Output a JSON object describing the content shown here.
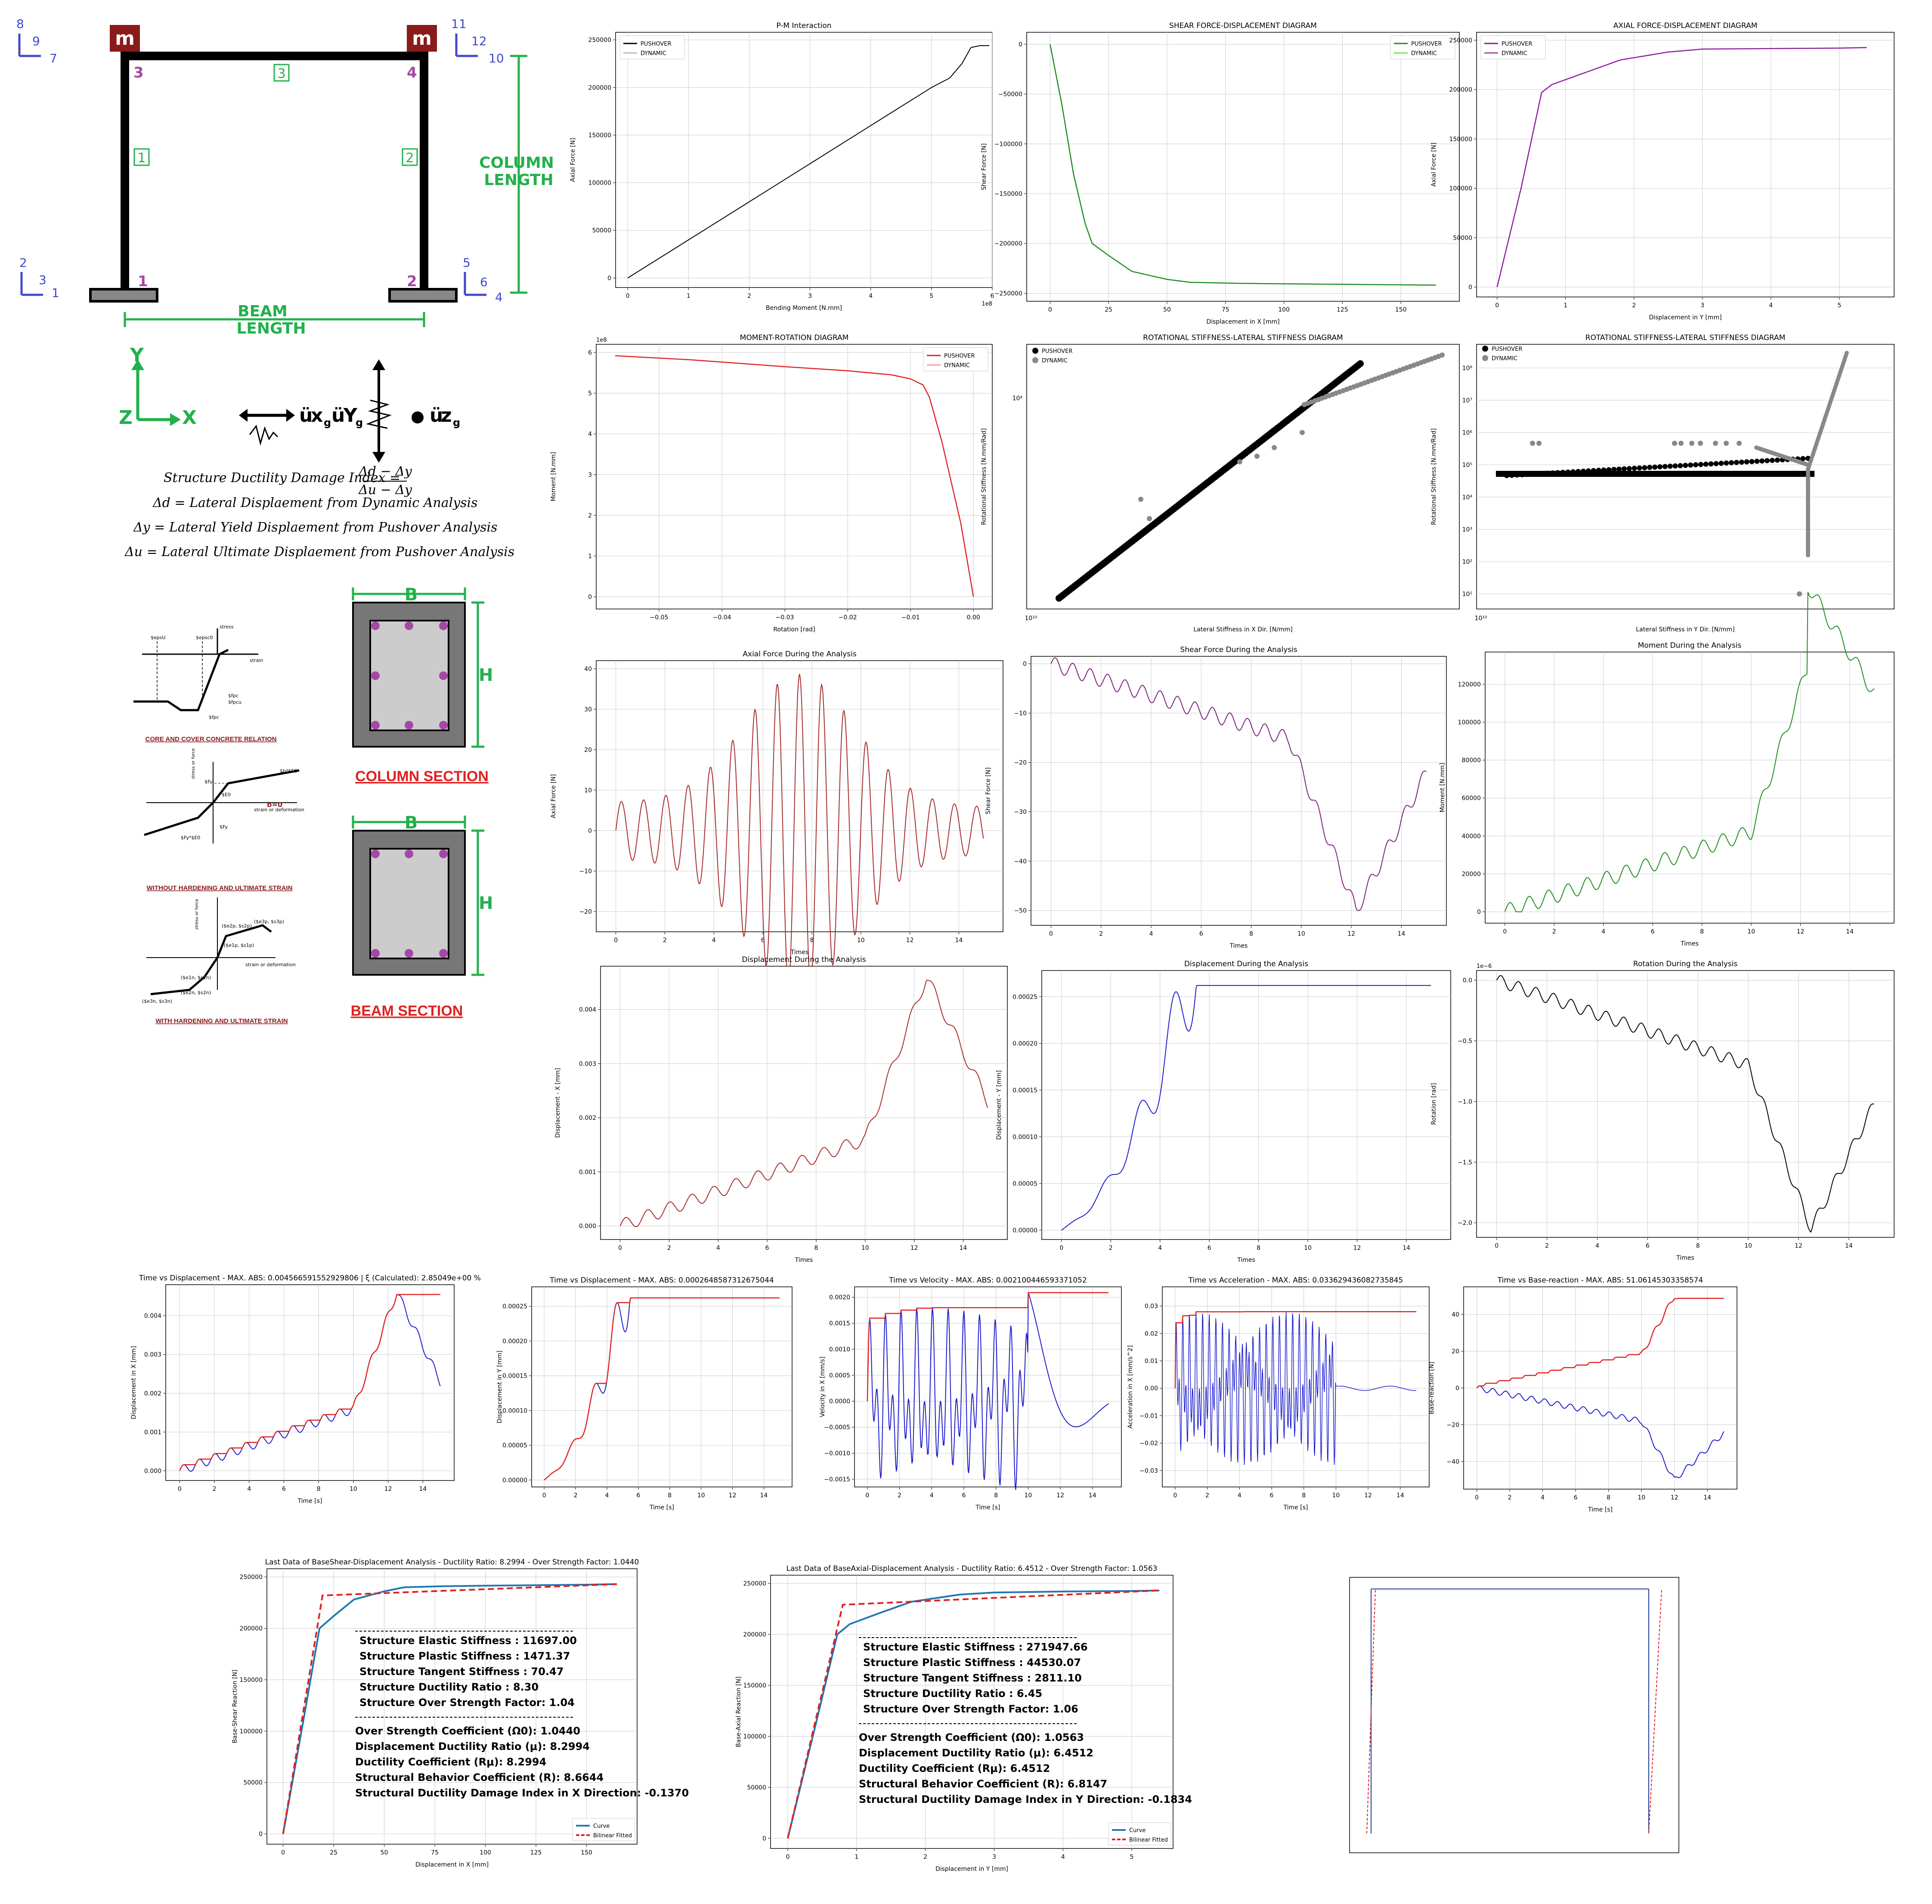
{
  "frame": {
    "mass_label": "m",
    "nodes": [
      "1",
      "2",
      "3",
      "4"
    ],
    "elements": [
      "1",
      "2",
      "3"
    ],
    "dofs": [
      "1",
      "2",
      "3",
      "4",
      "5",
      "6",
      "7",
      "8",
      "9",
      "10",
      "11",
      "12"
    ],
    "beam_length": [
      "BEAM",
      "LENGTH"
    ],
    "column_length": [
      "COLUMN",
      "LENGTH"
    ],
    "axes": {
      "y": "Y",
      "z": "Z",
      "x": "X"
    },
    "excitations": [
      "ü",
      "x",
      "g",
      "ü",
      "Y",
      "g",
      "ü",
      "z",
      "g"
    ]
  },
  "formulas": {
    "index_label": "Structure Ductility Damage Index =",
    "index_num": "Δd − Δy",
    "index_den": "Δu − Δy",
    "line2": "Δd = Lateral Displaement from Dynamic Analysis",
    "line3": "Δy = Lateral Yield Displaement from Pushover Analysis",
    "line4": "Δu = Lateral Ultimate Displaement from Pushover Analysis"
  },
  "materials": {
    "m1_caption": "CORE AND COVER CONCRETE RELATION",
    "m2_caption": "WITHOUT HARDENING AND ULTIMATE STRAIN",
    "m3_caption": "WITH HARDENING AND ULTIMATE STRAIN",
    "m1_labels": [
      "$epsU",
      "$epsc0",
      "$fpc",
      "$fpcu",
      "$fpc",
      "strain",
      "stress"
    ],
    "m2_labels": [
      "$Fy",
      "$E0",
      "$b*$E0",
      "b=0",
      "$Fy",
      "$Fy*$E0",
      "stress or force",
      "strain or deformation"
    ],
    "m3_labels": [
      "($e2p, $s2p)",
      "($e1p, $s1p)",
      "($e3p, $s3p)",
      "($e1n, $s1n)",
      "($e2n, $s2n)",
      "($e3n, $s3n)",
      "stress or force",
      "strain or deformation"
    ]
  },
  "sections": {
    "b_label": "B",
    "h_label": "H",
    "column_title": "COLUMN SECTION",
    "beam_title": "BEAM SECTION"
  },
  "colors": {
    "green": "#22b14c",
    "purple": "#a349a4",
    "maroon": "#8b1a1a",
    "blue": "#3f48cc",
    "red": "#e02020"
  },
  "chart_data": [
    {
      "id": "pm",
      "type": "line",
      "title": "P-M Interaction",
      "xlabel": "Bending Moment [N.mm]",
      "ylabel": "Axial Force [N]",
      "x_multiplier": "1e8",
      "xticks": [
        "0",
        "1",
        "2",
        "3",
        "4",
        "5",
        "6"
      ],
      "yticks": [
        "0",
        "50000",
        "100000",
        "150000",
        "200000",
        "250000"
      ],
      "legend": [
        "PUSHOVER",
        "DYNAMIC"
      ],
      "series": [
        {
          "name": "PUSHOVER",
          "color": "#000000",
          "x": [
            0,
            1,
            2,
            3,
            4,
            5,
            5.3,
            5.5,
            5.65,
            5.8,
            5.95
          ],
          "y": [
            0,
            40000,
            80000,
            120000,
            160000,
            200000,
            210000,
            225000,
            242000,
            244000,
            244000
          ]
        }
      ]
    },
    {
      "id": "sfd",
      "type": "line",
      "title": "SHEAR FORCE-DISPLACEMENT DIAGRAM",
      "xlabel": "Displacement  in X [mm]",
      "ylabel": "Shear Force [N]",
      "xticks": [
        "0",
        "25",
        "50",
        "75",
        "100",
        "125",
        "150"
      ],
      "yticks": [
        "0",
        "−50000",
        "−100000",
        "−150000",
        "−200000",
        "−250000"
      ],
      "legend": [
        "PUSHOVER",
        "DYNAMIC"
      ],
      "series": [
        {
          "name": "PUSHOVER",
          "color": "#1a8c1a",
          "x": [
            0,
            5,
            10,
            15,
            18,
            25,
            35,
            50,
            60,
            80,
            100,
            125,
            150,
            165
          ],
          "y": [
            0,
            -60000,
            -130000,
            -180000,
            -200000,
            -212000,
            -228000,
            -236000,
            -239000,
            -240000,
            -240500,
            -241000,
            -241500,
            -241800
          ]
        }
      ]
    },
    {
      "id": "afd",
      "type": "line",
      "title": "AXIAL FORCE-DISPLACEMENT DIAGRAM",
      "xlabel": "Displacement in Y [mm]",
      "ylabel": "Axial Force [N]",
      "xticks": [
        "0",
        "1",
        "2",
        "3",
        "4",
        "5"
      ],
      "yticks": [
        "0",
        "50000",
        "100000",
        "150000",
        "200000",
        "250000"
      ],
      "legend": [
        "PUSHOVER",
        "DYNAMIC"
      ],
      "series": [
        {
          "name": "PUSHOVER",
          "color": "#8b1a9c",
          "x": [
            0,
            0.35,
            0.65,
            0.8,
            1.2,
            1.8,
            2.5,
            3,
            4,
            5,
            5.4
          ],
          "y": [
            0,
            100000,
            197000,
            205000,
            215000,
            230000,
            238000,
            241000,
            241500,
            242000,
            242500
          ]
        }
      ]
    },
    {
      "id": "mr",
      "type": "line",
      "title": "MOMENT-ROTATION DIAGRAM",
      "xlabel": "Rotation [rad]",
      "ylabel": "Moment [N.mm]",
      "y_multiplier": "1e8",
      "xticks": [
        "−0.05",
        "−0.04",
        "−0.03",
        "−0.02",
        "−0.01",
        "0.00"
      ],
      "yticks": [
        "0",
        "1",
        "2",
        "3",
        "4",
        "5",
        "6"
      ],
      "legend": [
        "PUSHOVER",
        "DYNAMIC"
      ],
      "series": [
        {
          "name": "PUSHOVER",
          "color": "#e02020",
          "x": [
            -0.057,
            -0.045,
            -0.03,
            -0.02,
            -0.013,
            -0.01,
            -0.008,
            -0.007,
            -0.005,
            -0.002,
            0
          ],
          "y": [
            5.92,
            5.82,
            5.65,
            5.55,
            5.45,
            5.35,
            5.2,
            4.9,
            3.8,
            1.8,
            0
          ]
        }
      ]
    },
    {
      "id": "rsx",
      "type": "scatter",
      "title": "ROTATIONAL STIFFNESS-LATERAL STIFFNESS DIAGRAM",
      "xlabel": "Lateral Stiffness in X Dir. [N/mm]",
      "ylabel": "Rotational Stiffness [N.mm/Rad]",
      "legend": [
        "PUSHOVER",
        "DYNAMIC"
      ],
      "xticks": [
        "10¹⁰"
      ],
      "yticks": [
        "10⁴"
      ]
    },
    {
      "id": "rsy",
      "type": "scatter",
      "title": "ROTATIONAL STIFFNESS-LATERAL STIFFNESS DIAGRAM",
      "xlabel": "Lateral Stiffness in Y Dir. [N/mm]",
      "ylabel": "Rotational Stiffness [N.mm/Rad]",
      "legend": [
        "PUSHOVER",
        "DYNAMIC"
      ],
      "xticks": [
        "10¹⁰"
      ],
      "yticks": [
        "10¹",
        "10²",
        "10³",
        "10⁴",
        "10⁵",
        "10⁶",
        "10⁷",
        "10⁸"
      ]
    },
    {
      "id": "afa",
      "type": "line",
      "title": "Axial Force During the Analysis",
      "xlabel": "Times",
      "ylabel": "Axial Force [N]",
      "xticks": [
        "0",
        "2",
        "4",
        "6",
        "8",
        "10",
        "12",
        "14"
      ],
      "yticks": [
        "−20",
        "−10",
        "0",
        "10",
        "20",
        "30",
        "40"
      ],
      "series": [
        {
          "color": "#a52a2a"
        }
      ]
    },
    {
      "id": "sfa",
      "type": "line",
      "title": "Shear Force During the Analysis",
      "xlabel": "Times",
      "ylabel": "Shear Force [N]",
      "xticks": [
        "0",
        "2",
        "4",
        "6",
        "8",
        "10",
        "12",
        "14"
      ],
      "yticks": [
        "−50",
        "−40",
        "−30",
        "−20",
        "−10",
        "0"
      ],
      "series": [
        {
          "color": "#7b1f7b"
        }
      ]
    },
    {
      "id": "ma",
      "type": "line",
      "title": "Moment During the Analysis",
      "xlabel": "Times",
      "ylabel": "Moment [N.mm]",
      "xticks": [
        "0",
        "2",
        "4",
        "6",
        "8",
        "10",
        "12",
        "14"
      ],
      "yticks": [
        "0",
        "20000",
        "40000",
        "60000",
        "80000",
        "100000",
        "120000"
      ],
      "series": [
        {
          "color": "#1a8c1a"
        }
      ]
    },
    {
      "id": "dax",
      "type": "line",
      "title": "Displacement During the Analysis",
      "xlabel": "Times",
      "ylabel": "Displacement - X [mm]",
      "xticks": [
        "0",
        "2",
        "4",
        "6",
        "8",
        "10",
        "12",
        "14"
      ],
      "yticks": [
        "0.000",
        "0.001",
        "0.002",
        "0.003",
        "0.004"
      ],
      "series": [
        {
          "color": "#a52a2a"
        }
      ]
    },
    {
      "id": "day",
      "type": "line",
      "title": "Displacement During the Analysis",
      "xlabel": "Times",
      "ylabel": "Displacement - Y [mm]",
      "xticks": [
        "0",
        "2",
        "4",
        "6",
        "8",
        "10",
        "12",
        "14"
      ],
      "yticks": [
        "0.00000",
        "0.00005",
        "0.00010",
        "0.00015",
        "0.00020",
        "0.00025"
      ],
      "series": [
        {
          "color": "#1a1acc"
        }
      ]
    },
    {
      "id": "ra",
      "type": "line",
      "title": "Rotation During the Analysis",
      "xlabel": "Times",
      "ylabel": "Rotation [rad]",
      "y_multiplier": "1e−6",
      "xticks": [
        "0",
        "2",
        "4",
        "6",
        "8",
        "10",
        "12",
        "14"
      ],
      "yticks": [
        "−2.0",
        "−1.5",
        "−1.0",
        "−0.5",
        "0.0"
      ],
      "series": [
        {
          "color": "#000000"
        }
      ]
    },
    {
      "id": "tdx",
      "type": "line",
      "title": "Time vs Displacement - MAX. ABS: 0.004566591552929806 | ξ (Calculated): 2.85049e+00 %",
      "xlabel": "Time [s]",
      "ylabel": "Displacement in X [mm]",
      "xticks": [
        "0",
        "2",
        "4",
        "6",
        "8",
        "10",
        "12",
        "14"
      ],
      "yticks": [
        "0.000",
        "0.001",
        "0.002",
        "0.003",
        "0.004"
      ]
    },
    {
      "id": "tdy",
      "type": "line",
      "title": "Time vs Displacement - MAX. ABS: 0.0002648587312675044",
      "xlabel": "Time [s]",
      "ylabel": "Displacement in Y [mm]",
      "xticks": [
        "0",
        "2",
        "4",
        "6",
        "8",
        "10",
        "12",
        "14"
      ],
      "yticks": [
        "0.00000",
        "0.00005",
        "0.00010",
        "0.00015",
        "0.00020",
        "0.00025"
      ]
    },
    {
      "id": "tv",
      "type": "line",
      "title": "Time vs Velocity - MAX. ABS: 0.002100446593371052",
      "xlabel": "Time [s]",
      "ylabel": "Velocity in X [mm/s]",
      "xticks": [
        "0",
        "2",
        "4",
        "6",
        "8",
        "10",
        "12",
        "14"
      ],
      "yticks": [
        "−0.0015",
        "−0.0010",
        "−0.0005",
        "0.0000",
        "0.0005",
        "0.0010",
        "0.0015",
        "0.0020"
      ]
    },
    {
      "id": "ta",
      "type": "line",
      "title": "Time vs Acceleration - MAX. ABS: 0.033629436082735845",
      "xlabel": "Time [s]",
      "ylabel": "Acceleration in X [mm/s^2]",
      "xticks": [
        "0",
        "2",
        "4",
        "6",
        "8",
        "10",
        "12",
        "14"
      ],
      "yticks": [
        "−0.03",
        "−0.02",
        "−0.01",
        "0.00",
        "0.01",
        "0.02",
        "0.03"
      ]
    },
    {
      "id": "tb",
      "type": "line",
      "title": "Time vs Base-reaction - MAX. ABS: 51.06145303358574",
      "xlabel": "Time [s]",
      "ylabel": "Base-reaction [N]",
      "xticks": [
        "0",
        "2",
        "4",
        "6",
        "8",
        "10",
        "12",
        "14"
      ],
      "yticks": [
        "−40",
        "−20",
        "0",
        "20",
        "40"
      ]
    },
    {
      "id": "bsd",
      "type": "line",
      "title": "Last Data of BaseShear-Displacement Analysis - Ductility Ratio: 8.2994 - Over Strength Factor: 1.0440",
      "xlabel": "Displacement in X [mm]",
      "ylabel": "Base-Shear Reaction [N]",
      "xticks": [
        "0",
        "25",
        "50",
        "75",
        "100",
        "125",
        "150"
      ],
      "yticks": [
        "0",
        "50000",
        "100000",
        "150000",
        "200000",
        "250000"
      ],
      "legend": [
        "Curve",
        "Bilinear Fitted"
      ],
      "series": [
        {
          "name": "Curve",
          "color": "#1f77b4",
          "x": [
            0,
            10,
            18,
            25,
            35,
            50,
            60,
            80,
            100,
            125,
            150,
            165
          ],
          "y": [
            0,
            110000,
            200000,
            212000,
            228000,
            236000,
            240000,
            241000,
            241500,
            242000,
            242500,
            243000
          ]
        },
        {
          "name": "Bilinear Fitted",
          "color": "#e02020",
          "x": [
            0,
            19.5,
            165
          ],
          "y": [
            0,
            232000,
            243000
          ]
        }
      ],
      "annotations": [
        "Structure Elastic Stiffness :       11697.00",
        "Structure Plastic Stiffness :       1471.37",
        "Structure Tangent Stiffness :      70.47",
        "Structure Ductility Ratio :       8.30",
        "Structure Over Strength Factor:    1.04",
        "Over Strength Coefficient (Ω0):      1.0440",
        "Displacement Ductility Ratio (μ):    8.2994",
        "Ductility Coefficient (Rμ):             8.2994",
        "Structural Behavior Coefficient (R): 8.6644",
        "Structural Ductility Damage Index in X Direction: -0.1370"
      ]
    },
    {
      "id": "bad",
      "type": "line",
      "title": "Last Data of BaseAxial-Displacement Analysis - Ductility Ratio: 6.4512 - Over Strength Factor: 1.0563",
      "xlabel": "Displacement in Y [mm]",
      "ylabel": "Base-Axial Reaction [N]",
      "xticks": [
        "0",
        "1",
        "2",
        "3",
        "4",
        "5"
      ],
      "yticks": [
        "0",
        "50000",
        "100000",
        "150000",
        "200000",
        "250000"
      ],
      "legend": [
        "Curve",
        "Bilinear Fitted"
      ],
      "series": [
        {
          "name": "Curve",
          "color": "#1f77b4",
          "x": [
            0,
            0.4,
            0.72,
            0.9,
            1.3,
            1.8,
            2.5,
            3,
            4,
            5,
            5.4
          ],
          "y": [
            0,
            110000,
            200000,
            210000,
            220000,
            232000,
            239000,
            241000,
            242000,
            242500,
            243000
          ]
        },
        {
          "name": "Bilinear Fitted",
          "color": "#e02020",
          "x": [
            0,
            0.8,
            5.4
          ],
          "y": [
            0,
            229000,
            243000
          ]
        }
      ],
      "annotations": [
        "Structure Elastic Stiffness :     271947.66",
        "Structure Plastic Stiffness :      44530.07",
        "Structure Tangent Stiffness :     2811.10",
        "Structure Ductility Ratio :        6.45",
        "Structure Over Strength Factor:    1.06",
        "Over Strength Coefficient (Ω0):      1.0563",
        "Displacement Ductility Ratio (μ):    6.4512",
        "Ductility Coefficient (Rμ):             6.4512",
        "Structural Behavior Coefficient (R): 6.8147",
        "Structural Ductility Damage Index in Y Direction: -0.1834"
      ]
    },
    {
      "id": "small",
      "type": "line",
      "title": "",
      "legend": [
        "",
        "",
        ""
      ]
    }
  ]
}
